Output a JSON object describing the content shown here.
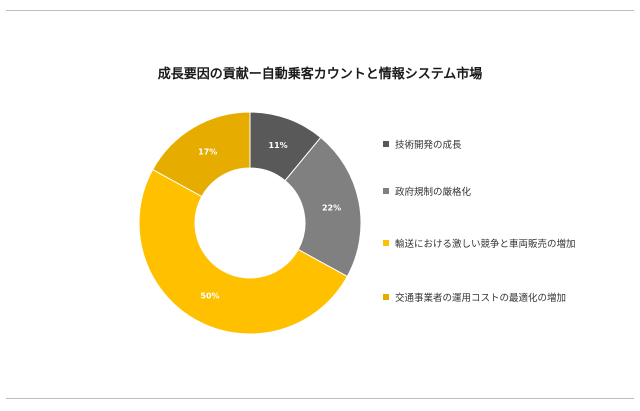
{
  "chart_data": {
    "type": "pie",
    "subtype": "donut",
    "title": "成長要因の貢献ー自動乗客カウントと情報システム市場",
    "categories": [
      "技術開発の成長",
      "政府規制の厳格化",
      "輸送における激しい競争と車両販売の増加",
      "交通事業者の運用コストの最適化の増加"
    ],
    "values": [
      11,
      22,
      50,
      17
    ],
    "labels": [
      "11%",
      "22%",
      "50%",
      "17%"
    ],
    "colors": [
      "#595959",
      "#808080",
      "#ffc000",
      "#e6ac00"
    ],
    "legend_placement": "right"
  }
}
